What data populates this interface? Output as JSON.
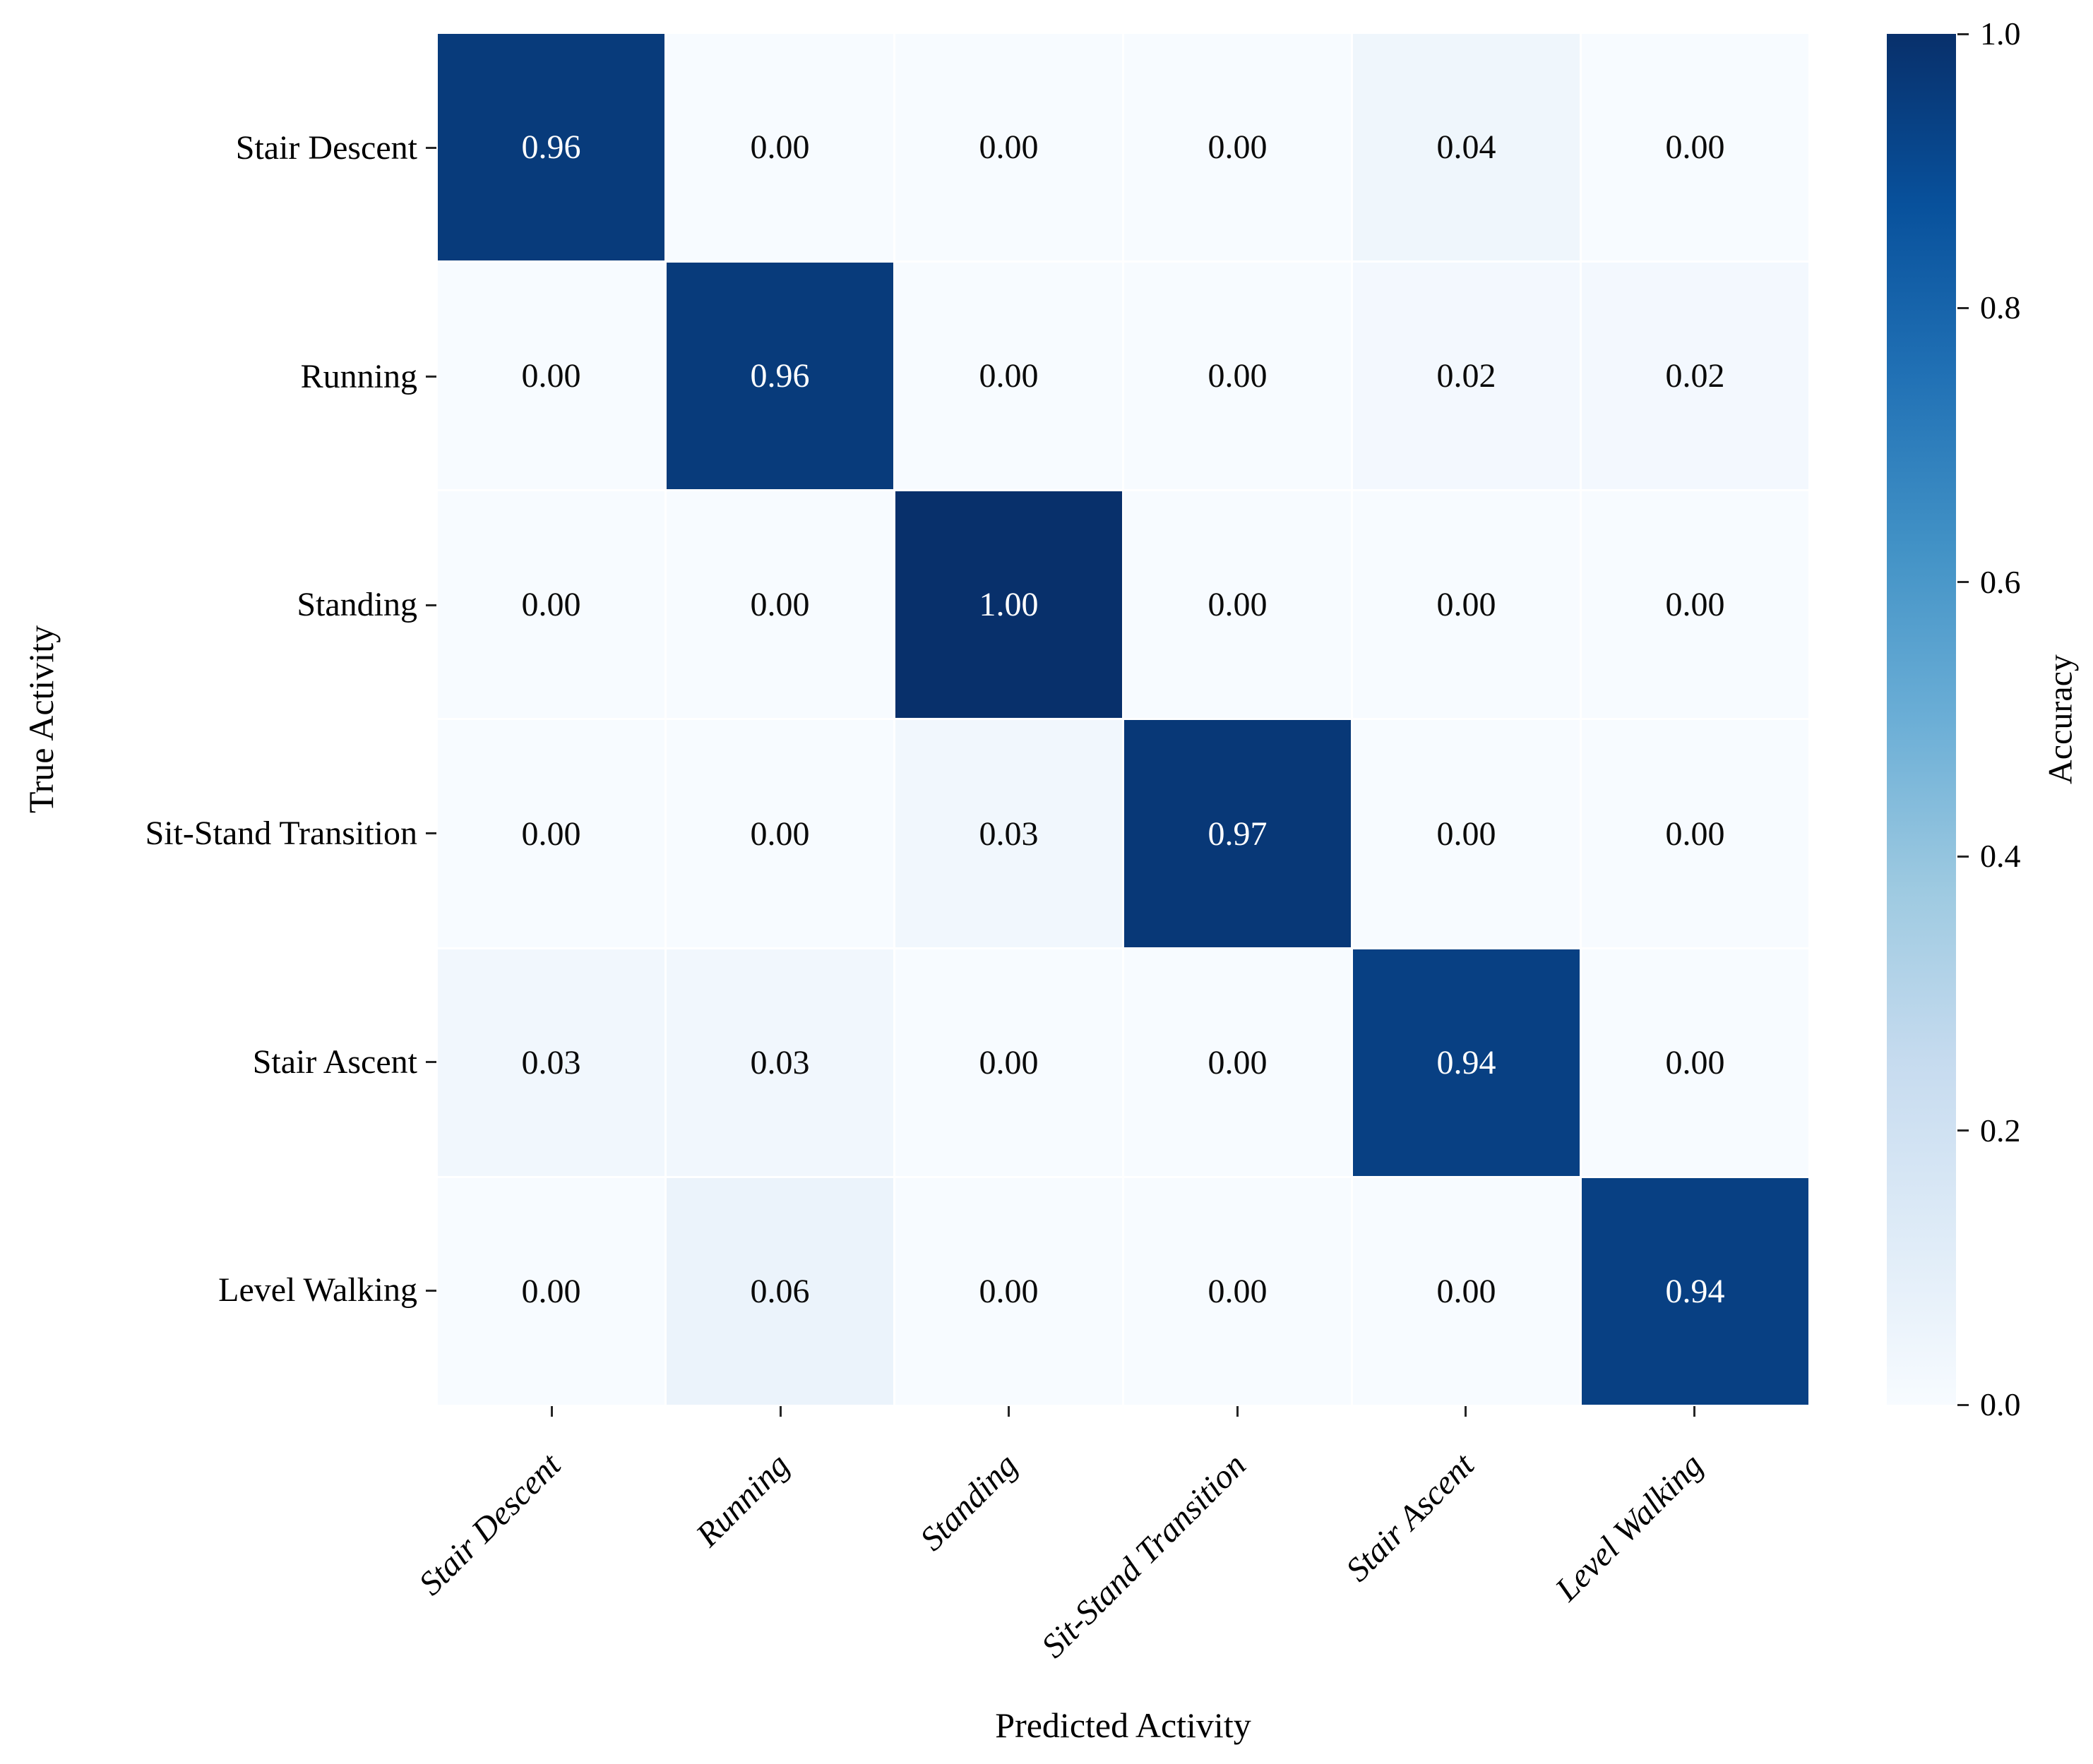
{
  "chart_data": {
    "type": "heatmap",
    "xlabel": "Predicted Activity",
    "ylabel": "True Activity",
    "categories": [
      "Stair Descent",
      "Running",
      "Standing",
      "Sit-Stand Transition",
      "Stair Ascent",
      "Level Walking"
    ],
    "matrix": [
      [
        0.96,
        0.0,
        0.0,
        0.0,
        0.04,
        0.0
      ],
      [
        0.0,
        0.96,
        0.0,
        0.0,
        0.02,
        0.02
      ],
      [
        0.0,
        0.0,
        1.0,
        0.0,
        0.0,
        0.0
      ],
      [
        0.0,
        0.0,
        0.03,
        0.97,
        0.0,
        0.0
      ],
      [
        0.03,
        0.03,
        0.0,
        0.0,
        0.94,
        0.0
      ],
      [
        0.0,
        0.06,
        0.0,
        0.0,
        0.0,
        0.94
      ]
    ],
    "value_decimals": 2,
    "vmin": 0.0,
    "vmax": 1.0,
    "grid_gap": "white gridlines between cells",
    "colormap_name": "Blues",
    "colormap_anchors": [
      "#f7fbff",
      "#deebf7",
      "#c6dbef",
      "#9ecae1",
      "#6baed6",
      "#4292c6",
      "#2171b5",
      "#08519c",
      "#08306b"
    ],
    "cell_text_color_light": "#ffffff",
    "cell_text_color_dark": "#0a0a0a",
    "colorbar": {
      "label": "Accuracy",
      "ticks": [
        "1.0",
        "0.8",
        "0.6",
        "0.4",
        "0.2",
        "0.0"
      ],
      "tick_values": [
        1.0,
        0.8,
        0.6,
        0.4,
        0.2,
        0.0
      ]
    }
  }
}
